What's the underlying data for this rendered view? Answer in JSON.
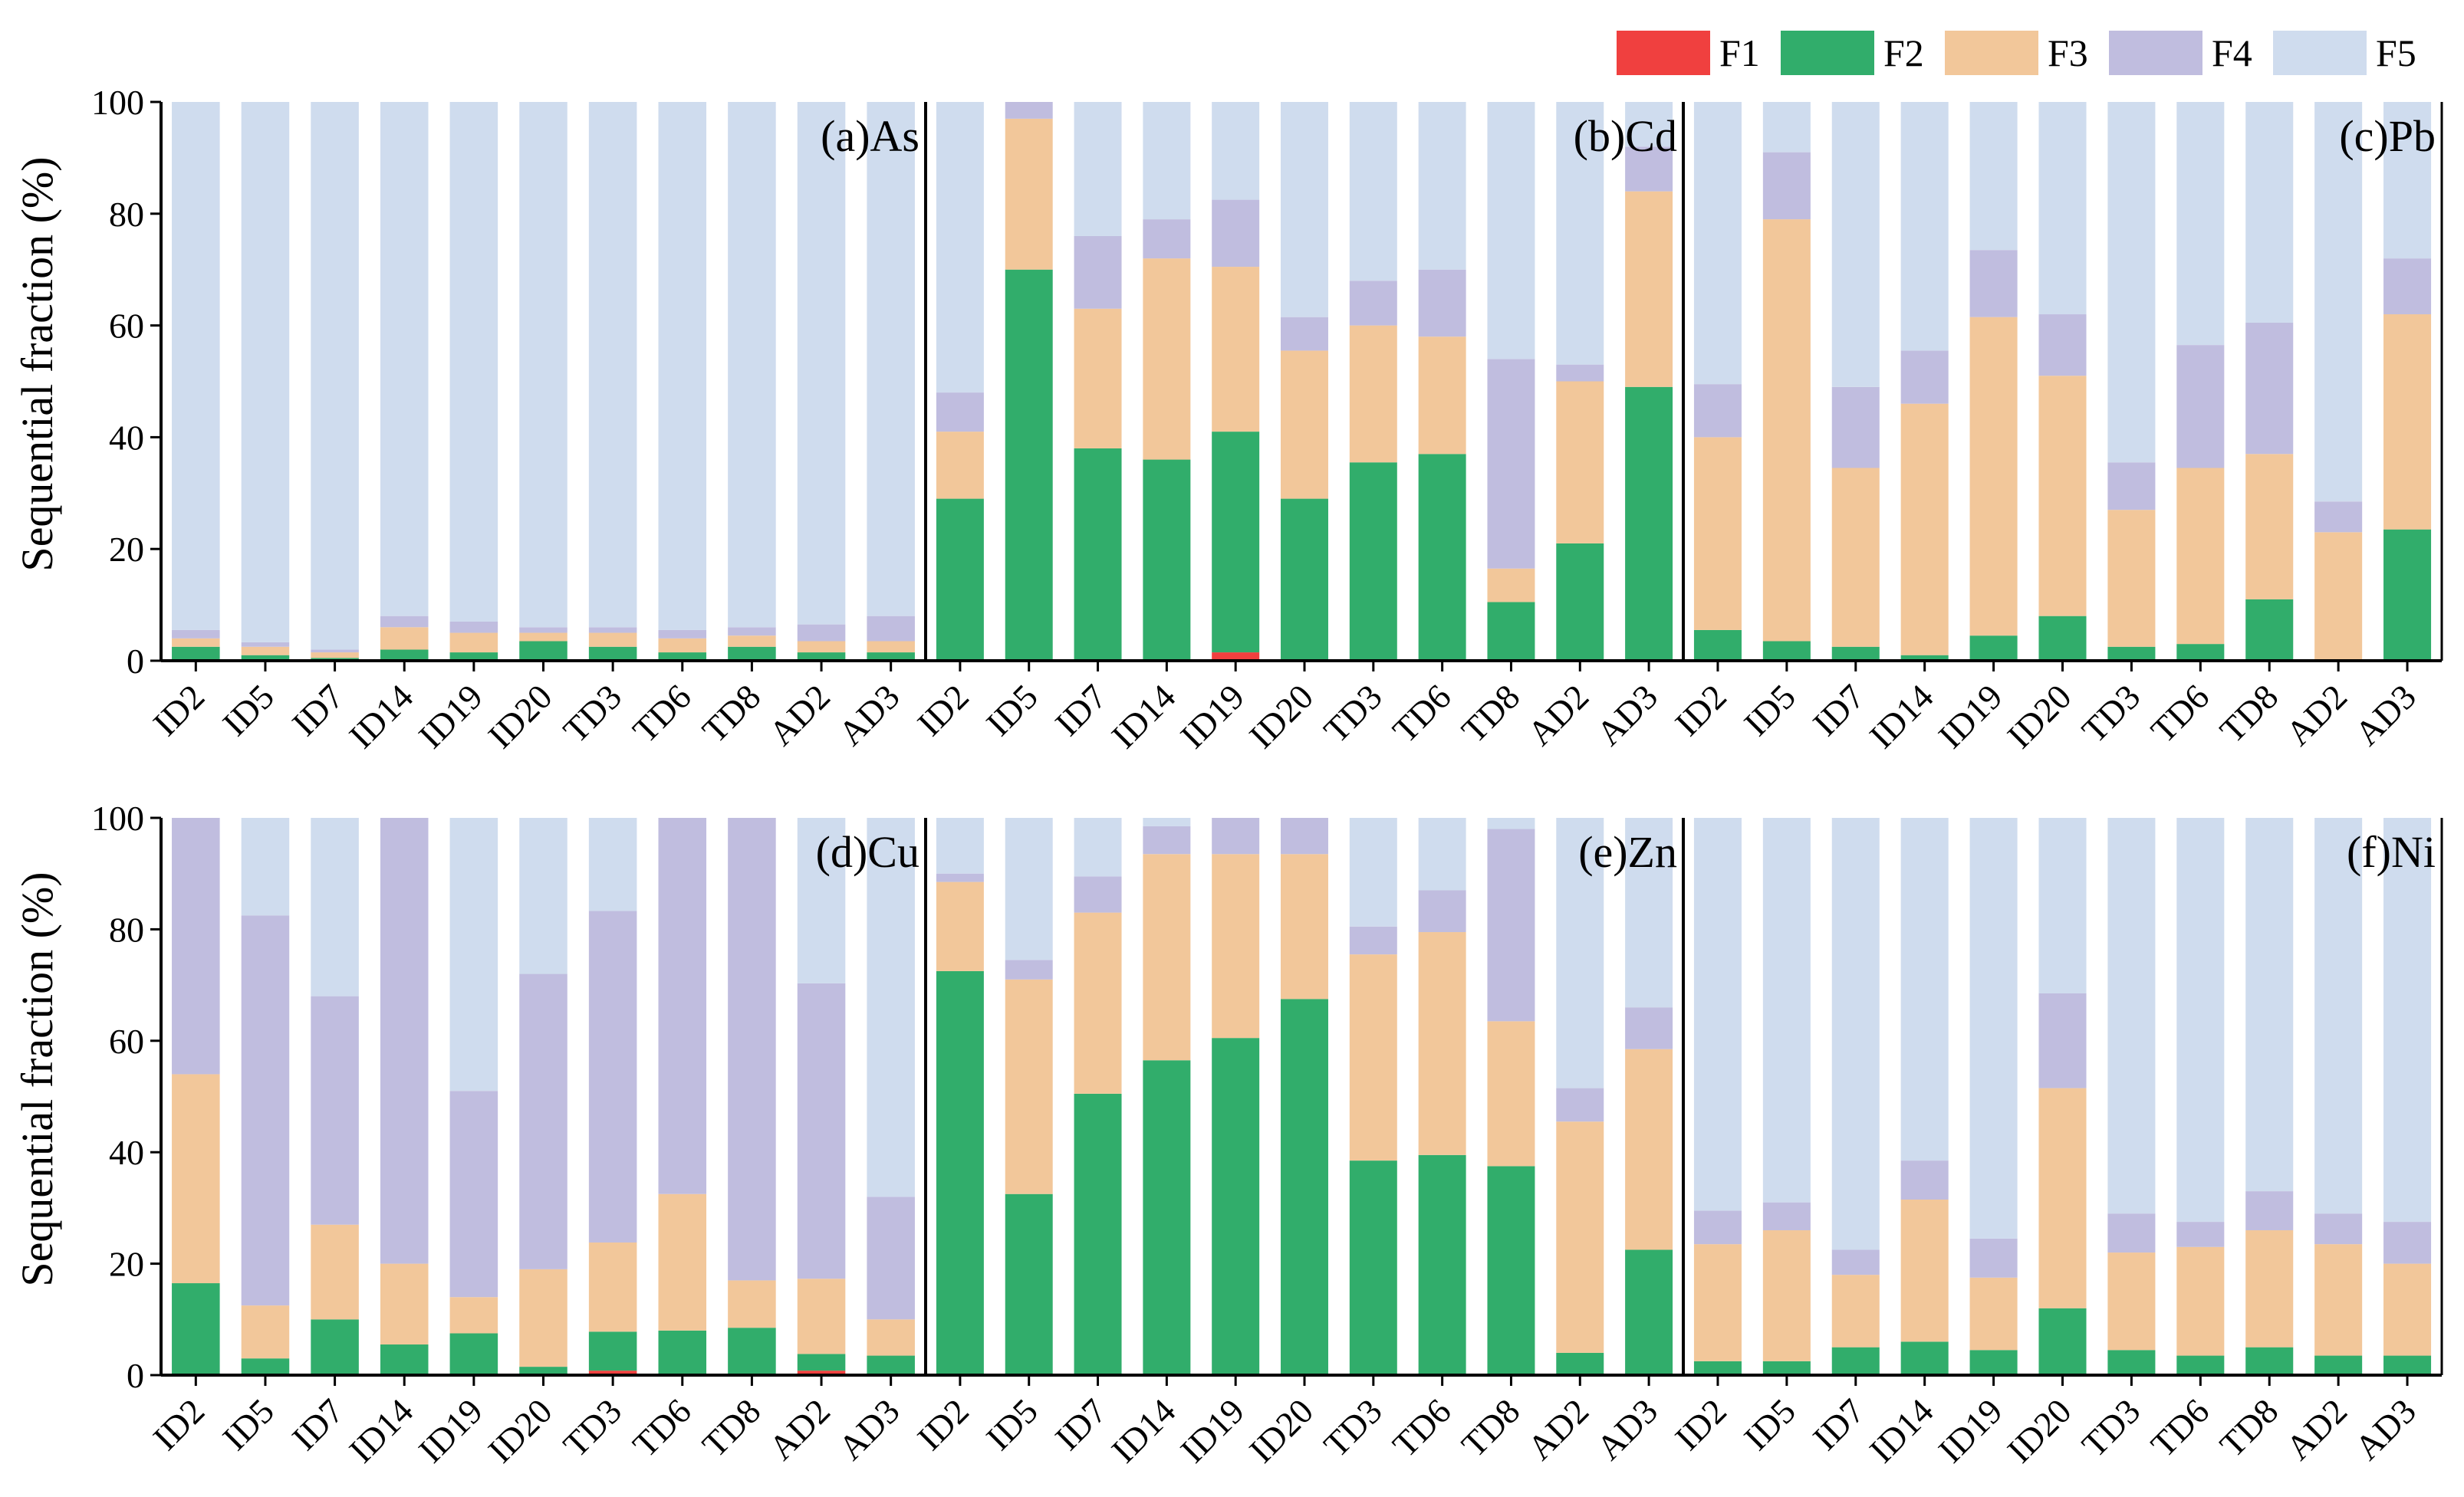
{
  "legend": [
    {
      "key": "F1",
      "label": "F1",
      "color": "#f0403f"
    },
    {
      "key": "F2",
      "label": "F2",
      "color": "#31ad6b"
    },
    {
      "key": "F3",
      "label": "F3",
      "color": "#f2c79a"
    },
    {
      "key": "F4",
      "label": "F4",
      "color": "#c0bddf"
    },
    {
      "key": "F5",
      "label": "F5",
      "color": "#cfdcee"
    }
  ],
  "chart_data": {
    "type": "bar",
    "stacked": true,
    "ylabel": "Sequential fraction (%)",
    "ylim": [
      0,
      100
    ],
    "yticks": [
      0,
      20,
      40,
      60,
      80,
      100
    ],
    "categories": [
      "ID2",
      "ID5",
      "ID7",
      "ID14",
      "ID19",
      "ID20",
      "TD3",
      "TD6",
      "TD8",
      "AD2",
      "AD3"
    ],
    "legend_position": "top-right",
    "grid": false,
    "panels": [
      {
        "label": "(a)As",
        "stacks": [
          [
            0,
            2.5,
            1.5,
            1.5,
            94.5
          ],
          [
            0,
            1.0,
            1.5,
            0.8,
            96.7
          ],
          [
            0,
            0.5,
            1.0,
            0.5,
            98.0
          ],
          [
            0,
            2.0,
            4.0,
            2.0,
            92.0
          ],
          [
            0,
            1.5,
            3.5,
            2.0,
            93.0
          ],
          [
            0,
            3.5,
            1.5,
            1.0,
            94.0
          ],
          [
            0,
            2.5,
            2.5,
            1.0,
            94.0
          ],
          [
            0,
            1.5,
            2.5,
            1.5,
            94.5
          ],
          [
            0,
            2.5,
            2.0,
            1.5,
            94.0
          ],
          [
            0,
            1.5,
            2.0,
            3.0,
            93.5
          ],
          [
            0,
            1.5,
            2.0,
            4.5,
            92.0
          ]
        ]
      },
      {
        "label": "(b)Cd",
        "stacks": [
          [
            0,
            29,
            12,
            7,
            52
          ],
          [
            0,
            70,
            27,
            3,
            0
          ],
          [
            0,
            38,
            25,
            13,
            24
          ],
          [
            0,
            36,
            36,
            7,
            21
          ],
          [
            1.5,
            39.5,
            29.5,
            12,
            17.5
          ],
          [
            0,
            29,
            26.5,
            6,
            38.5
          ],
          [
            0,
            35.5,
            24.5,
            8,
            32
          ],
          [
            0,
            37,
            21,
            12,
            30
          ],
          [
            0,
            10.5,
            6,
            37.5,
            46
          ],
          [
            0,
            21,
            29,
            3,
            47
          ],
          [
            0,
            49,
            35,
            8,
            8
          ]
        ]
      },
      {
        "label": "(c)Pb",
        "stacks": [
          [
            0,
            5.5,
            34.5,
            9.5,
            50.5
          ],
          [
            0,
            3.5,
            75.5,
            12,
            9
          ],
          [
            0,
            2.5,
            32,
            14.5,
            51
          ],
          [
            0,
            1,
            45,
            9.5,
            44.5
          ],
          [
            0,
            4.5,
            57,
            12,
            26.5
          ],
          [
            0,
            8,
            43,
            11,
            38
          ],
          [
            0,
            2.5,
            24.5,
            8.5,
            64.5
          ],
          [
            0,
            3,
            31.5,
            22,
            43.5
          ],
          [
            0,
            11,
            26,
            23.5,
            39.5
          ],
          [
            0,
            0,
            23,
            5.5,
            71.5
          ],
          [
            0,
            23.5,
            38.5,
            10,
            28
          ]
        ]
      },
      {
        "label": "(d)Cu",
        "stacks": [
          [
            0,
            16.5,
            37.5,
            46,
            0
          ],
          [
            0,
            3,
            9.5,
            70,
            17.5
          ],
          [
            0,
            10,
            17,
            41,
            32
          ],
          [
            0,
            5.5,
            14.5,
            80,
            0
          ],
          [
            0,
            7.5,
            6.5,
            37,
            49
          ],
          [
            0,
            1.5,
            17.5,
            53,
            28
          ],
          [
            0.8,
            7,
            16,
            59.5,
            16.7
          ],
          [
            0,
            8,
            24.5,
            67.5,
            0
          ],
          [
            0,
            8.5,
            8.5,
            83,
            0
          ],
          [
            0.8,
            3,
            13.5,
            53,
            29.7
          ],
          [
            0,
            3.5,
            6.5,
            22,
            68
          ]
        ]
      },
      {
        "label": "(e)Zn",
        "stacks": [
          [
            0,
            72.5,
            16,
            1.5,
            10
          ],
          [
            0,
            32.5,
            38.5,
            3.5,
            25.5
          ],
          [
            0,
            50.5,
            32.5,
            6.5,
            10.5
          ],
          [
            0,
            56.5,
            37,
            5,
            1.5
          ],
          [
            0,
            60.5,
            33,
            6.5,
            0
          ],
          [
            0,
            67.5,
            26,
            6.5,
            0
          ],
          [
            0,
            38.5,
            37,
            5,
            19.5
          ],
          [
            0,
            39.5,
            40,
            7.5,
            13
          ],
          [
            0,
            37.5,
            26,
            34.5,
            2
          ],
          [
            0,
            4,
            41.5,
            6,
            48.5
          ],
          [
            0,
            22.5,
            36,
            7.5,
            34
          ]
        ]
      },
      {
        "label": "(f)Ni",
        "stacks": [
          [
            0,
            2.5,
            21,
            6,
            70.5
          ],
          [
            0,
            2.5,
            23.5,
            5,
            69
          ],
          [
            0,
            5,
            13,
            4.5,
            77.5
          ],
          [
            0,
            6,
            25.5,
            7,
            61.5
          ],
          [
            0,
            4.5,
            13,
            7,
            75.5
          ],
          [
            0,
            12,
            39.5,
            17,
            31.5
          ],
          [
            0,
            4.5,
            17.5,
            7,
            71
          ],
          [
            0,
            3.5,
            19.5,
            4.5,
            72.5
          ],
          [
            0,
            5,
            21,
            7,
            67
          ],
          [
            0,
            3.5,
            20,
            5.5,
            71
          ],
          [
            0,
            3.5,
            16.5,
            7.5,
            72.5
          ]
        ]
      }
    ]
  }
}
